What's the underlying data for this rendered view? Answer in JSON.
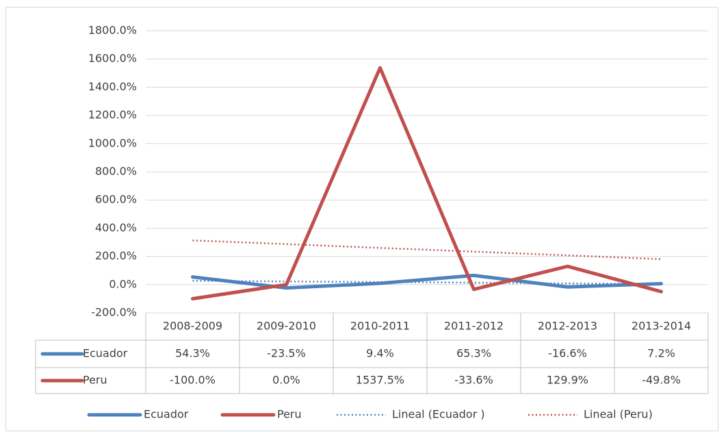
{
  "chart_data": {
    "type": "line",
    "categories": [
      "2008-2009",
      "2009-2010",
      "2010-2011",
      "2011-2012",
      "2012-2013",
      "2013-2014"
    ],
    "series": [
      {
        "name": "Ecuador",
        "color": "#4f81bd",
        "values": [
          54.3,
          -23.5,
          9.4,
          65.3,
          -16.6,
          7.2
        ],
        "value_labels": [
          "54.3%",
          "-23.5%",
          "9.4%",
          "65.3%",
          "-16.6%",
          "7.2%"
        ],
        "trendline": {
          "name": "Lineal (Ecuador )",
          "type": "linear"
        }
      },
      {
        "name": "Peru",
        "color": "#c0504d",
        "values": [
          -100.0,
          0.0,
          1537.5,
          -33.6,
          129.9,
          -49.8
        ],
        "value_labels": [
          "-100.0%",
          "0.0%",
          "1537.5%",
          "-33.6%",
          "129.9%",
          "-49.8%"
        ],
        "trendline": {
          "name": "Lineal (Peru)",
          "type": "linear"
        }
      }
    ],
    "ylim": [
      -200,
      1800
    ],
    "yticks": [
      {
        "value": -200,
        "label": "-200.0%"
      },
      {
        "value": 0,
        "label": "0.0%"
      },
      {
        "value": 200,
        "label": "200.0%"
      },
      {
        "value": 400,
        "label": "400.0%"
      },
      {
        "value": 600,
        "label": "600.0%"
      },
      {
        "value": 800,
        "label": "800.0%"
      },
      {
        "value": 1000,
        "label": "1000.0%"
      },
      {
        "value": 1200,
        "label": "1200.0%"
      },
      {
        "value": 1400,
        "label": "1400.0%"
      },
      {
        "value": 1600,
        "label": "1600.0%"
      },
      {
        "value": 1800,
        "label": "1800.0%"
      }
    ],
    "grid": true,
    "legend": "bottom",
    "data_table": true
  }
}
